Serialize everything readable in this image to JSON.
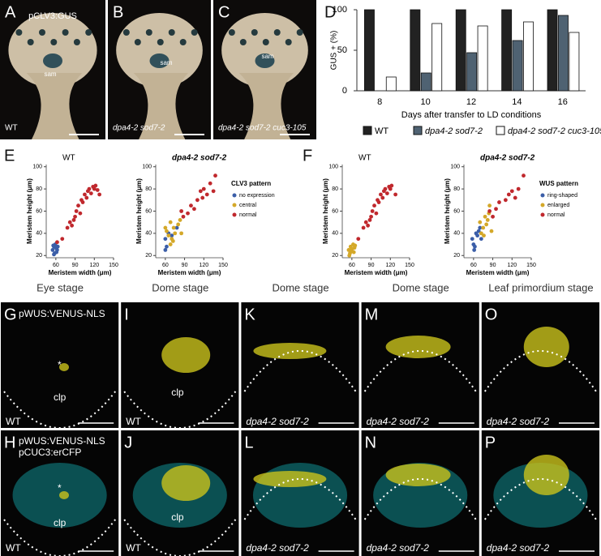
{
  "photos": [
    {
      "label": "A",
      "texts": [
        "pCLV3:GUS",
        "sam",
        "WT"
      ]
    },
    {
      "label": "B",
      "texts": [
        "sam",
        "dpa4-2 sod7-2"
      ]
    },
    {
      "label": "C",
      "texts": [
        "sam",
        "dpa4-2 sod7-2 cuc3-105"
      ]
    }
  ],
  "panel_letters": [
    "D",
    "E",
    "F"
  ],
  "chart_data": [
    {
      "type": "bar",
      "ylabel": "GUS + (%)",
      "xlabel": "Days after transfer to LD conditions",
      "categories": [
        "8",
        "10",
        "12",
        "14",
        "16"
      ],
      "ylim": [
        0,
        100
      ],
      "yticks": [
        0,
        50,
        100
      ],
      "series": [
        {
          "name": "WT",
          "color": "#222222",
          "values": [
            100,
            100,
            100,
            100,
            100
          ]
        },
        {
          "name": "dpa4-2 sod7-2",
          "color": "#4f6272",
          "values": [
            0,
            22,
            47,
            62,
            93
          ]
        },
        {
          "name": "dpa4-2 sod7-2 cuc3-105",
          "color": "#ffffff",
          "values": [
            17,
            83,
            80,
            85,
            72
          ]
        }
      ]
    },
    {
      "type": "scatter",
      "title": "WT",
      "xlabel": "Meristem width (μm)",
      "ylabel": "Meristem height (μm)",
      "xlim": [
        45,
        150
      ],
      "ylim": [
        18,
        102
      ],
      "xticks": [
        60,
        90,
        120,
        150
      ],
      "yticks": [
        20,
        40,
        60,
        80,
        100
      ],
      "legend": false,
      "series": [
        {
          "name": "no expression",
          "color": "#3b5ea8",
          "x": [
            55,
            57,
            58,
            60,
            62,
            56,
            59,
            63,
            57,
            61
          ],
          "y": [
            25,
            28,
            22,
            27,
            25,
            29,
            30,
            28,
            21,
            23
          ]
        },
        {
          "name": "normal",
          "color": "#c0282d",
          "x": [
            62,
            70,
            78,
            82,
            85,
            88,
            90,
            92,
            95,
            98,
            100,
            102,
            105,
            108,
            110,
            112,
            115,
            118,
            120,
            122,
            125,
            128
          ],
          "y": [
            32,
            35,
            45,
            50,
            47,
            52,
            55,
            60,
            65,
            58,
            70,
            68,
            75,
            72,
            78,
            80,
            76,
            82,
            80,
            83,
            79,
            75
          ]
        }
      ]
    },
    {
      "type": "scatter",
      "title": "dpa4-2 sod7-2",
      "xlabel": "Meristem width (μm)",
      "ylabel": "Meristem height (μm)",
      "xlim": [
        45,
        150
      ],
      "ylim": [
        18,
        102
      ],
      "xticks": [
        60,
        90,
        120,
        150
      ],
      "yticks": [
        20,
        40,
        60,
        80,
        100
      ],
      "legend": "right",
      "legend_title": "CLV3 pattern",
      "series": [
        {
          "name": "no expression",
          "color": "#3b5ea8",
          "x": [
            60,
            62,
            65,
            60,
            70,
            78
          ],
          "y": [
            35,
            28,
            40,
            25,
            38,
            45
          ]
        },
        {
          "name": "central",
          "color": "#d4a829",
          "x": [
            60,
            62,
            65,
            68,
            70,
            72,
            75,
            80,
            83,
            85,
            68,
            73
          ],
          "y": [
            45,
            42,
            38,
            50,
            35,
            33,
            40,
            48,
            52,
            40,
            30,
            45
          ]
        },
        {
          "name": "normal",
          "color": "#c0282d",
          "x": [
            85,
            88,
            95,
            100,
            105,
            110,
            115,
            120,
            125,
            130,
            138,
            118,
            135
          ],
          "y": [
            60,
            55,
            58,
            65,
            62,
            70,
            78,
            80,
            75,
            85,
            92,
            72,
            78
          ]
        }
      ]
    },
    {
      "type": "scatter",
      "title": "WT",
      "xlabel": "Meristem width (μm)",
      "ylabel": "Meristem height (μm)",
      "xlim": [
        45,
        150
      ],
      "ylim": [
        18,
        102
      ],
      "xticks": [
        60,
        90,
        120,
        150
      ],
      "yticks": [
        20,
        40,
        60,
        80,
        100
      ],
      "legend": false,
      "series": [
        {
          "name": "enlarged",
          "color": "#d4a829",
          "x": [
            55,
            57,
            58,
            60,
            62,
            64,
            56,
            60,
            65,
            63
          ],
          "y": [
            25,
            22,
            28,
            26,
            30,
            27,
            20,
            24,
            29,
            23
          ]
        },
        {
          "name": "normal",
          "color": "#c0282d",
          "x": [
            70,
            78,
            82,
            85,
            88,
            90,
            92,
            95,
            98,
            100,
            102,
            105,
            108,
            110,
            112,
            115,
            118,
            120,
            122,
            128
          ],
          "y": [
            35,
            45,
            50,
            47,
            52,
            55,
            60,
            65,
            58,
            70,
            68,
            75,
            72,
            78,
            80,
            76,
            82,
            80,
            83,
            75
          ]
        }
      ]
    },
    {
      "type": "scatter",
      "title": "dpa4-2 sod7-2",
      "xlabel": "Meristem width (μm)",
      "ylabel": "Meristem height (μm)",
      "xlim": [
        45,
        150
      ],
      "ylim": [
        18,
        102
      ],
      "xticks": [
        60,
        90,
        120,
        150
      ],
      "yticks": [
        20,
        40,
        60,
        80,
        100
      ],
      "legend": "right",
      "legend_title": "WUS pattern",
      "series": [
        {
          "name": "ring-shaped",
          "color": "#3b5ea8",
          "x": [
            58,
            60,
            62,
            64,
            66,
            68,
            70,
            61,
            72
          ],
          "y": [
            35,
            30,
            28,
            40,
            38,
            42,
            45,
            25,
            35
          ]
        },
        {
          "name": "enlarged",
          "color": "#d4a829",
          "x": [
            70,
            72,
            75,
            78,
            80,
            82,
            84,
            85,
            76,
            88
          ],
          "y": [
            50,
            40,
            45,
            55,
            48,
            52,
            58,
            65,
            38,
            42
          ]
        },
        {
          "name": "normal",
          "color": "#c0282d",
          "x": [
            85,
            90,
            95,
            100,
            110,
            115,
            120,
            130,
            138,
            125
          ],
          "y": [
            60,
            55,
            62,
            68,
            70,
            75,
            78,
            80,
            92,
            72
          ]
        }
      ]
    }
  ],
  "micro": {
    "columns": [
      "Eye stage",
      "Dome stage",
      "Dome stage",
      "Dome stage",
      "Leaf primordium stage"
    ],
    "panels": [
      {
        "label": "G",
        "texts": [
          "pWUS:VENUS-NLS",
          "*",
          "clp",
          "WT"
        ]
      },
      {
        "label": "I",
        "texts": [
          "clp",
          "WT"
        ]
      },
      {
        "label": "K",
        "texts": [
          "dpa4-2 sod7-2"
        ]
      },
      {
        "label": "M",
        "texts": [
          "dpa4-2 sod7-2"
        ]
      },
      {
        "label": "O",
        "texts": [
          "dpa4-2 sod7-2"
        ]
      },
      {
        "label": "H",
        "texts": [
          "pWUS:VENUS-NLS",
          "pCUC3:erCFP",
          "*",
          "clp",
          "WT"
        ]
      },
      {
        "label": "J",
        "texts": [
          "clp",
          "WT"
        ]
      },
      {
        "label": "L",
        "texts": [
          "dpa4-2 sod7-2"
        ]
      },
      {
        "label": "N",
        "texts": [
          "dpa4-2 sod7-2"
        ]
      },
      {
        "label": "P",
        "texts": [
          "dpa4-2 sod7-2"
        ]
      }
    ]
  }
}
